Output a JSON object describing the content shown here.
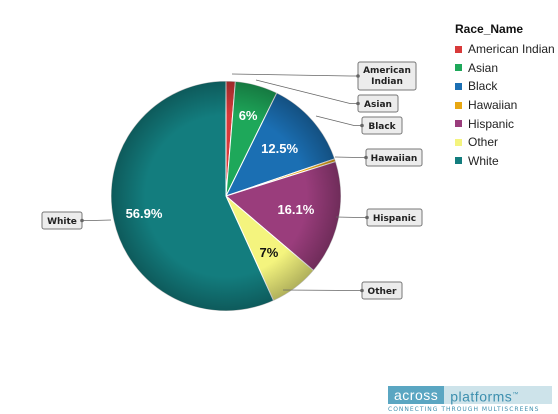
{
  "chart_data": {
    "type": "pie",
    "legend_title": "Race_Name",
    "legend_position": "top-right",
    "slices": [
      {
        "name": "American Indian",
        "value": 1.3,
        "color": "#d83a3a",
        "callout": [
          "American",
          "Indian"
        ],
        "label": ""
      },
      {
        "name": "Asian",
        "value": 6.0,
        "color": "#1ea85a",
        "callout": [
          "Asian"
        ],
        "label": "6%"
      },
      {
        "name": "Black",
        "value": 12.5,
        "color": "#1b6fb3",
        "callout": [
          "Black"
        ],
        "label": "12.5%"
      },
      {
        "name": "Hawaiian",
        "value": 0.4,
        "color": "#e8a712",
        "callout": [
          "Hawaiian"
        ],
        "label": ""
      },
      {
        "name": "Hispanic",
        "value": 16.1,
        "color": "#9a3d7c",
        "callout": [
          "Hispanic"
        ],
        "label": "16.1%"
      },
      {
        "name": "Other",
        "value": 7.0,
        "color": "#f4f47e",
        "callout": [
          "Other"
        ],
        "label": "7%"
      },
      {
        "name": "White",
        "value": 56.9,
        "color": "#137d7e",
        "callout": [
          "White"
        ],
        "label": "56.9%"
      }
    ]
  },
  "logo": {
    "part1": "across",
    "part2": "platforms",
    "tm": "™",
    "tagline": "CONNECTING THROUGH MULTISCREENS"
  }
}
